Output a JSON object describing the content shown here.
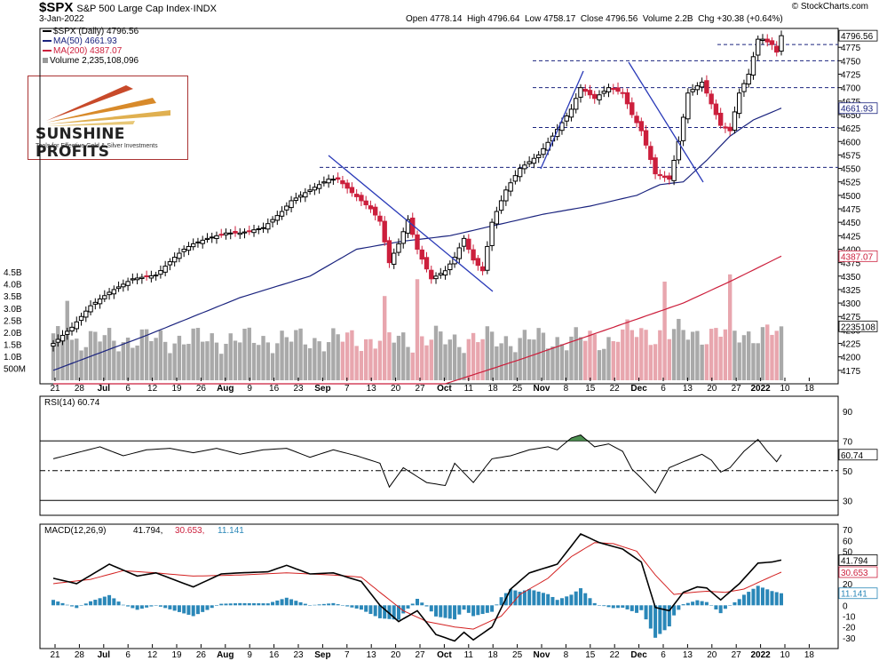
{
  "header": {
    "symbol": "$SPX",
    "description": "S&P 500 Large Cap Index·INDX",
    "date": "3-Jan-2022",
    "stats": "Open 4778.14  High 4796.64  Low 4758.17  Close 4796.56  Volume 2.2B  Chg +30.38 (+0.64%)",
    "copyright": "© StockCharts.com"
  },
  "legend": {
    "price": "$SPX (Daily) 4796.56",
    "ma50": "MA(50) 4661.93",
    "ma200": "MA(200) 4387.07",
    "volume": "Volume 2,235,108,096"
  },
  "logo": {
    "name": "SUNSHINE PROFITS",
    "tagline": "Tools for Effective Gold & Silver Investments"
  },
  "colors": {
    "up": "#000000",
    "down": "#cc1f3c",
    "ma50": "#1a237e",
    "ma200": "#cc1f3c",
    "vol_up": "#a9a9a9",
    "vol_down": "#e8a6ae",
    "macd_hist": "#2a87b8",
    "rsi_fill": "#2e7d32"
  },
  "chart_data": [
    {
      "type": "candlestick",
      "title": "$SPX (Daily)",
      "ylim": [
        4150,
        4810
      ],
      "y_ticks": [
        4175,
        4200,
        4225,
        4250,
        4275,
        4300,
        4325,
        4350,
        4375,
        4400,
        4425,
        4450,
        4475,
        4500,
        4525,
        4550,
        4575,
        4600,
        4625,
        4650,
        4675,
        4700,
        4725,
        4750,
        4775
      ],
      "x_tick_labels": [
        "21",
        "28",
        "Jul",
        "6",
        "12",
        "19",
        "26",
        "Aug",
        "9",
        "16",
        "23",
        "Sep",
        "7",
        "13",
        "20",
        "27",
        "Oct",
        "11",
        "18",
        "25",
        "Nov",
        "8",
        "15",
        "22",
        "Dec",
        "6",
        "13",
        "20",
        "27",
        "2022",
        "10",
        "18"
      ],
      "y_value_tags": [
        "4796.56",
        "4661.93",
        "4387.07",
        "2235108"
      ],
      "close_anchors": [
        [
          0,
          4225
        ],
        [
          4,
          4255
        ],
        [
          8,
          4295
        ],
        [
          12,
          4320
        ],
        [
          17,
          4345
        ],
        [
          22,
          4352
        ],
        [
          26,
          4385
        ],
        [
          28,
          4400
        ],
        [
          30,
          4410
        ],
        [
          33,
          4420
        ],
        [
          37,
          4430
        ],
        [
          40,
          4430
        ],
        [
          45,
          4440
        ],
        [
          49,
          4470
        ],
        [
          51,
          4490
        ],
        [
          55,
          4510
        ],
        [
          59,
          4530
        ],
        [
          61,
          4530
        ],
        [
          64,
          4505
        ],
        [
          68,
          4475
        ],
        [
          70,
          4452
        ],
        [
          72,
          4375
        ],
        [
          74,
          4410
        ],
        [
          76,
          4455
        ],
        [
          78,
          4400
        ],
        [
          81,
          4345
        ],
        [
          84,
          4360
        ],
        [
          86,
          4385
        ],
        [
          88,
          4420
        ],
        [
          90,
          4380
        ],
        [
          92,
          4360
        ],
        [
          94,
          4450
        ],
        [
          97,
          4510
        ],
        [
          100,
          4550
        ],
        [
          104,
          4575
        ],
        [
          107,
          4610
        ],
        [
          111,
          4660
        ],
        [
          113,
          4700
        ],
        [
          116,
          4680
        ],
        [
          119,
          4700
        ],
        [
          122,
          4690
        ],
        [
          124,
          4650
        ],
        [
          126,
          4620
        ],
        [
          129,
          4540
        ],
        [
          132,
          4530
        ],
        [
          134,
          4600
        ],
        [
          136,
          4690
        ],
        [
          139,
          4710
        ],
        [
          141,
          4670
        ],
        [
          143,
          4630
        ],
        [
          145,
          4620
        ],
        [
          147,
          4690
        ],
        [
          149,
          4725
        ],
        [
          151,
          4790
        ],
        [
          152,
          4790
        ],
        [
          154,
          4780
        ],
        [
          155,
          4766
        ],
        [
          156,
          4796.56
        ]
      ],
      "ma50_anchors": [
        [
          0,
          4175
        ],
        [
          20,
          4240
        ],
        [
          40,
          4310
        ],
        [
          55,
          4350
        ],
        [
          65,
          4400
        ],
        [
          75,
          4415
        ],
        [
          85,
          4425
        ],
        [
          95,
          4445
        ],
        [
          105,
          4465
        ],
        [
          115,
          4480
        ],
        [
          125,
          4500
        ],
        [
          130,
          4520
        ],
        [
          135,
          4525
        ],
        [
          140,
          4565
        ],
        [
          145,
          4610
        ],
        [
          150,
          4640
        ],
        [
          156,
          4661.93
        ]
      ],
      "ma200_anchors": [
        [
          84,
          4150
        ],
        [
          100,
          4195
        ],
        [
          115,
          4240
        ],
        [
          125,
          4270
        ],
        [
          135,
          4300
        ],
        [
          145,
          4340
        ],
        [
          156,
          4387.07
        ]
      ],
      "horizontal_levels": [
        4552,
        4626,
        4700,
        4750,
        4780
      ]
    },
    {
      "type": "bar",
      "title": "Volume",
      "y_ticks": [
        "500M",
        "1.0B",
        "1.5B",
        "2.0B",
        "2.5B",
        "3.0B",
        "3.5B",
        "4.0B",
        "4.5B"
      ],
      "ylim": [
        0,
        4.8
      ],
      "spikes_billion": [
        [
          3,
          3.3
        ],
        [
          71,
          3.5
        ],
        [
          78,
          4.2
        ],
        [
          131,
          4.1
        ],
        [
          145,
          4.4
        ]
      ],
      "last_billion": 2.24
    },
    {
      "type": "line",
      "title": "RSI(14) 60.74",
      "ylim": [
        20,
        100
      ],
      "y_ticks": [
        30,
        50,
        70,
        90
      ],
      "last": 60.74,
      "anchors": [
        [
          0,
          58
        ],
        [
          5,
          62
        ],
        [
          10,
          66
        ],
        [
          15,
          60
        ],
        [
          20,
          64
        ],
        [
          25,
          65
        ],
        [
          30,
          62
        ],
        [
          35,
          65
        ],
        [
          40,
          61
        ],
        [
          45,
          64
        ],
        [
          50,
          65
        ],
        [
          55,
          59
        ],
        [
          60,
          64
        ],
        [
          65,
          60
        ],
        [
          70,
          55
        ],
        [
          72,
          39
        ],
        [
          75,
          52
        ],
        [
          80,
          42
        ],
        [
          84,
          40
        ],
        [
          86,
          55
        ],
        [
          90,
          42
        ],
        [
          94,
          58
        ],
        [
          98,
          60
        ],
        [
          102,
          64
        ],
        [
          106,
          66
        ],
        [
          108,
          64
        ],
        [
          111,
          72
        ],
        [
          113,
          74
        ],
        [
          116,
          66
        ],
        [
          119,
          68
        ],
        [
          122,
          63
        ],
        [
          124,
          51
        ],
        [
          126,
          45
        ],
        [
          129,
          35
        ],
        [
          132,
          52
        ],
        [
          135,
          56
        ],
        [
          139,
          61
        ],
        [
          141,
          57
        ],
        [
          143,
          49
        ],
        [
          145,
          52
        ],
        [
          148,
          63
        ],
        [
          151,
          71
        ],
        [
          153,
          63
        ],
        [
          155,
          56
        ],
        [
          156,
          60.74
        ]
      ]
    },
    {
      "type": "line",
      "title": "MACD(12,26,9) 41.794, 30.653, 11.141",
      "ylim": [
        -40,
        75
      ],
      "y_ticks": [
        -30,
        -20,
        -10,
        0,
        10,
        20,
        30,
        40,
        50,
        60,
        70
      ],
      "macd_anchors": [
        [
          0,
          25
        ],
        [
          5,
          20
        ],
        [
          12,
          38
        ],
        [
          18,
          27
        ],
        [
          22,
          30
        ],
        [
          30,
          17
        ],
        [
          36,
          29
        ],
        [
          40,
          30
        ],
        [
          46,
          31
        ],
        [
          50,
          37
        ],
        [
          55,
          29
        ],
        [
          60,
          30
        ],
        [
          66,
          22
        ],
        [
          70,
          0
        ],
        [
          74,
          -15
        ],
        [
          78,
          -5
        ],
        [
          82,
          -27
        ],
        [
          86,
          -33
        ],
        [
          88,
          -25
        ],
        [
          90,
          -32
        ],
        [
          94,
          -20
        ],
        [
          98,
          15
        ],
        [
          102,
          30
        ],
        [
          108,
          38
        ],
        [
          113,
          66
        ],
        [
          117,
          58
        ],
        [
          122,
          52
        ],
        [
          126,
          40
        ],
        [
          129,
          -2
        ],
        [
          132,
          -5
        ],
        [
          135,
          12
        ],
        [
          138,
          17
        ],
        [
          140,
          16
        ],
        [
          143,
          5
        ],
        [
          147,
          20
        ],
        [
          151,
          39
        ],
        [
          154,
          40
        ],
        [
          156,
          41.794
        ]
      ],
      "signal_anchors": [
        [
          0,
          20
        ],
        [
          8,
          24
        ],
        [
          15,
          32
        ],
        [
          22,
          30
        ],
        [
          30,
          27
        ],
        [
          40,
          28
        ],
        [
          50,
          30
        ],
        [
          60,
          28
        ],
        [
          66,
          26
        ],
        [
          70,
          12
        ],
        [
          75,
          -5
        ],
        [
          80,
          -15
        ],
        [
          86,
          -20
        ],
        [
          90,
          -22
        ],
        [
          96,
          -10
        ],
        [
          100,
          10
        ],
        [
          106,
          25
        ],
        [
          111,
          45
        ],
        [
          116,
          58
        ],
        [
          120,
          57
        ],
        [
          125,
          50
        ],
        [
          129,
          28
        ],
        [
          133,
          10
        ],
        [
          137,
          12
        ],
        [
          140,
          13
        ],
        [
          144,
          12
        ],
        [
          148,
          15
        ],
        [
          152,
          23
        ],
        [
          156,
          30.653
        ]
      ],
      "hist_last": 11.141,
      "values_shown": [
        "41.794",
        "30.653",
        "11.141"
      ]
    }
  ]
}
